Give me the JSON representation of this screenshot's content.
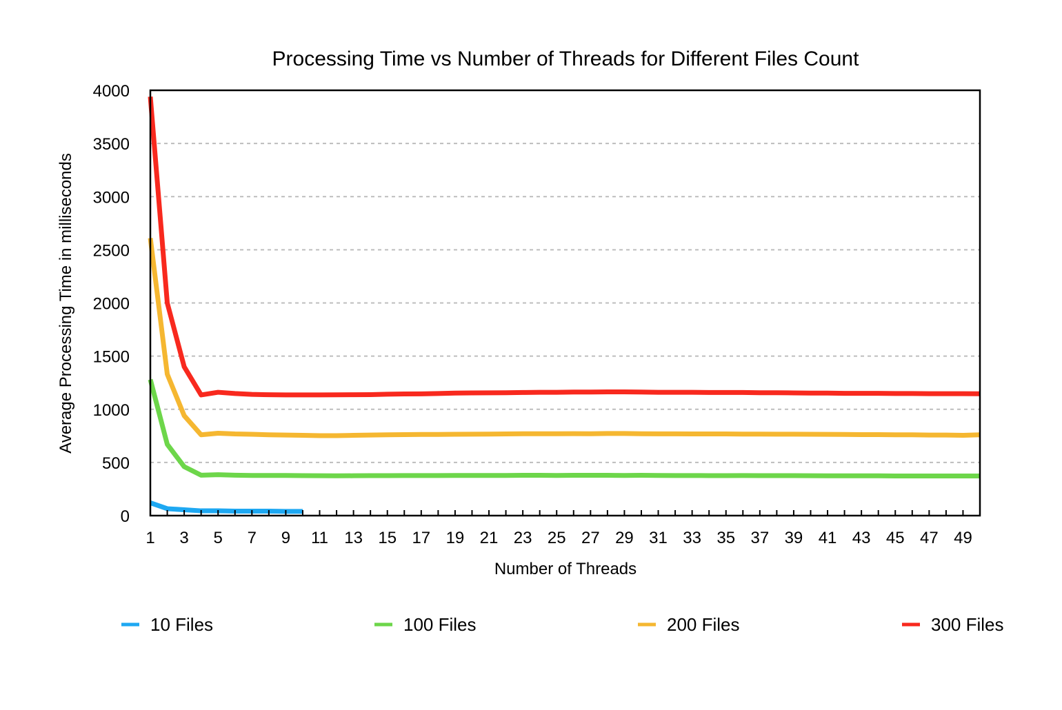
{
  "chart_data": {
    "type": "line",
    "title": "Processing Time vs Number of Threads for Different Files Count",
    "xlabel": "Number of Threads",
    "ylabel": "Average Processing Time in milliseconds",
    "xlim": [
      1,
      50
    ],
    "ylim": [
      0,
      4000
    ],
    "yticks": [
      0,
      500,
      1000,
      1500,
      2000,
      2500,
      3000,
      3500,
      4000
    ],
    "xtick_labels": [
      "1",
      "3",
      "5",
      "7",
      "9",
      "11",
      "13",
      "15",
      "17",
      "19",
      "21",
      "23",
      "25",
      "27",
      "29",
      "31",
      "33",
      "35",
      "37",
      "39",
      "41",
      "43",
      "45",
      "47",
      "49"
    ],
    "grid": "horizontal dashed",
    "legend_position": "bottom",
    "series": [
      {
        "name": "10 Files",
        "color": "#1ea8f2",
        "x": [
          1,
          2,
          3,
          4,
          5,
          6,
          7,
          8,
          9,
          10
        ],
        "values": [
          120,
          65,
          55,
          45,
          45,
          42,
          42,
          42,
          40,
          40
        ]
      },
      {
        "name": "100 Files",
        "color": "#6dd64a",
        "x": [
          1,
          2,
          3,
          4,
          5,
          6,
          7,
          8,
          9,
          10,
          11,
          12,
          13,
          14,
          15,
          16,
          17,
          18,
          19,
          20,
          21,
          22,
          23,
          24,
          25,
          26,
          27,
          28,
          29,
          30,
          31,
          32,
          33,
          34,
          35,
          36,
          37,
          38,
          39,
          40,
          41,
          42,
          43,
          44,
          45,
          46,
          47,
          48,
          49,
          50
        ],
        "values": [
          1280,
          670,
          460,
          380,
          385,
          380,
          378,
          378,
          378,
          376,
          375,
          374,
          375,
          376,
          376,
          377,
          377,
          377,
          378,
          378,
          378,
          378,
          379,
          379,
          378,
          379,
          379,
          379,
          378,
          379,
          378,
          377,
          377,
          376,
          376,
          377,
          376,
          376,
          376,
          375,
          374,
          374,
          374,
          374,
          373,
          373,
          373,
          373,
          373,
          373
        ]
      },
      {
        "name": "200 Files",
        "color": "#f5b731",
        "x": [
          1,
          2,
          3,
          4,
          5,
          6,
          7,
          8,
          9,
          10,
          11,
          12,
          13,
          14,
          15,
          16,
          17,
          18,
          19,
          20,
          21,
          22,
          23,
          24,
          25,
          26,
          27,
          28,
          29,
          30,
          31,
          32,
          33,
          34,
          35,
          36,
          37,
          38,
          39,
          40,
          41,
          42,
          43,
          44,
          45,
          46,
          47,
          48,
          49,
          50
        ],
        "values": [
          2610,
          1330,
          940,
          760,
          775,
          768,
          765,
          760,
          758,
          755,
          752,
          752,
          755,
          758,
          760,
          762,
          763,
          763,
          765,
          766,
          767,
          768,
          770,
          770,
          770,
          771,
          770,
          772,
          772,
          770,
          769,
          769,
          768,
          768,
          768,
          767,
          767,
          766,
          766,
          765,
          764,
          763,
          762,
          762,
          760,
          760,
          758,
          758,
          755,
          760
        ]
      },
      {
        "name": "300 Files",
        "color": "#f8291e",
        "x": [
          1,
          2,
          3,
          4,
          5,
          6,
          7,
          8,
          9,
          10,
          11,
          12,
          13,
          14,
          15,
          16,
          17,
          18,
          19,
          20,
          21,
          22,
          23,
          24,
          25,
          26,
          27,
          28,
          29,
          30,
          31,
          32,
          33,
          34,
          35,
          36,
          37,
          38,
          39,
          40,
          41,
          42,
          43,
          44,
          45,
          46,
          47,
          48,
          49,
          50
        ],
        "values": [
          3940,
          2000,
          1400,
          1135,
          1160,
          1148,
          1140,
          1137,
          1135,
          1135,
          1135,
          1136,
          1137,
          1138,
          1142,
          1144,
          1145,
          1148,
          1152,
          1154,
          1155,
          1156,
          1158,
          1160,
          1160,
          1162,
          1162,
          1164,
          1164,
          1162,
          1160,
          1160,
          1160,
          1158,
          1158,
          1158,
          1156,
          1156,
          1154,
          1152,
          1152,
          1150,
          1150,
          1150,
          1148,
          1148,
          1147,
          1147,
          1147,
          1146
        ]
      }
    ]
  }
}
